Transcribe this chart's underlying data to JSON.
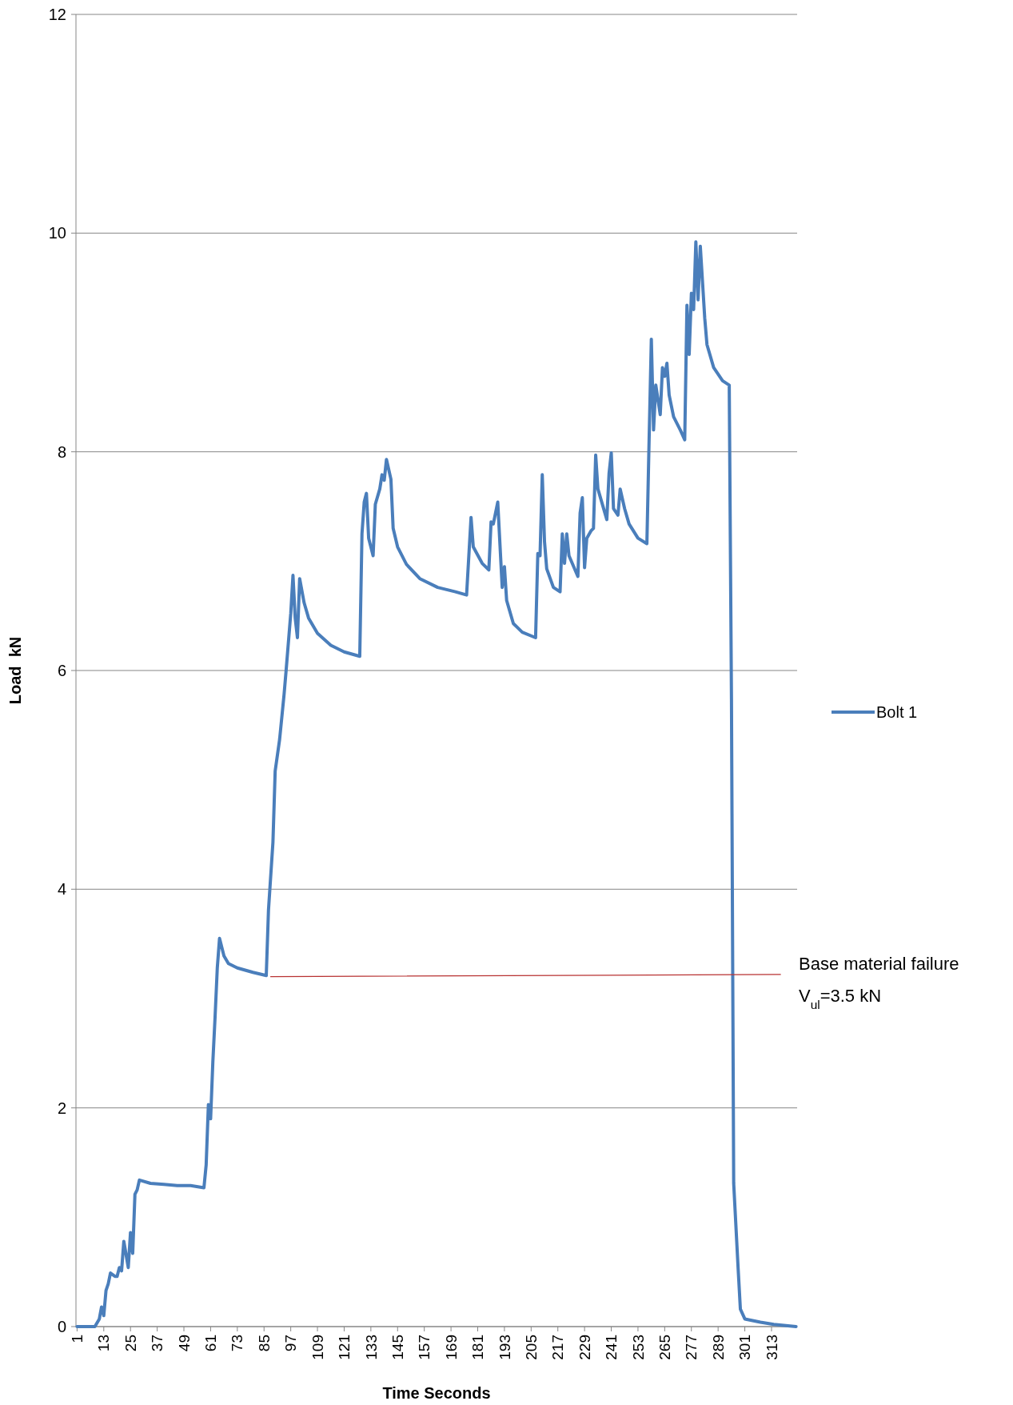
{
  "chart_data": {
    "type": "line",
    "xlabel": "Time Seconds",
    "ylabel": "Load  kN",
    "xlim": [
      0.5,
      324.5
    ],
    "ylim": [
      0,
      12
    ],
    "xticks": [
      1,
      13,
      25,
      37,
      49,
      61,
      73,
      85,
      97,
      109,
      121,
      133,
      145,
      157,
      169,
      181,
      193,
      205,
      217,
      229,
      241,
      253,
      265,
      277,
      289,
      301,
      313
    ],
    "yticks": [
      0,
      2,
      4,
      6,
      8,
      10,
      12
    ],
    "grid": "y",
    "legend": "right",
    "marker": "none",
    "line_style": "solid",
    "annotations": [
      "Base material failure",
      "V$_{ul}$=3.5 kN"
    ],
    "series": [
      {
        "name": "Bolt 1",
        "color": "#4a7ebb",
        "x": [
          1,
          9,
          11,
          12,
          13,
          14,
          15,
          16,
          18,
          19,
          20,
          21,
          22,
          24,
          25,
          26,
          27,
          28,
          29,
          34,
          40,
          46,
          52,
          58,
          59,
          60,
          61,
          62,
          63,
          64,
          65,
          67,
          69,
          73,
          80,
          86,
          87,
          89,
          90,
          92,
          94,
          95,
          97,
          98,
          99,
          100,
          101,
          103,
          105,
          109,
          115,
          121,
          128,
          129,
          130,
          131,
          132,
          134,
          135,
          137,
          138,
          139,
          140,
          142,
          143,
          145,
          149,
          155,
          163,
          171,
          176,
          178,
          179,
          183,
          186,
          187,
          188,
          190,
          192,
          193,
          194,
          197,
          201,
          207,
          208,
          209,
          210,
          211,
          212,
          215,
          218,
          219,
          220,
          221,
          222,
          226,
          227,
          228,
          229,
          230,
          232,
          233,
          234,
          235,
          239,
          240,
          241,
          242,
          244,
          245,
          247,
          249,
          253,
          257,
          258,
          259,
          260,
          261,
          263,
          264,
          265,
          266,
          267,
          269,
          272,
          274,
          275,
          276,
          277,
          278,
          279,
          280,
          281,
          283,
          284,
          287,
          291,
          294,
          295,
          296,
          298,
          299,
          301,
          308,
          314,
          324
        ],
        "values": [
          0,
          0,
          0.07,
          0.18,
          0.1,
          0.33,
          0.39,
          0.49,
          0.46,
          0.46,
          0.54,
          0.51,
          0.78,
          0.54,
          0.86,
          0.67,
          1.21,
          1.25,
          1.34,
          1.31,
          1.3,
          1.29,
          1.29,
          1.27,
          1.48,
          2.03,
          1.9,
          2.42,
          2.83,
          3.28,
          3.55,
          3.39,
          3.32,
          3.28,
          3.24,
          3.21,
          3.81,
          4.43,
          5.08,
          5.37,
          5.78,
          6.02,
          6.52,
          6.87,
          6.48,
          6.3,
          6.84,
          6.62,
          6.48,
          6.34,
          6.23,
          6.17,
          6.13,
          7.25,
          7.54,
          7.62,
          7.21,
          7.05,
          7.52,
          7.66,
          7.79,
          7.74,
          7.93,
          7.75,
          7.3,
          7.13,
          6.97,
          6.84,
          6.76,
          6.72,
          6.69,
          7.4,
          7.13,
          6.98,
          6.92,
          7.36,
          7.34,
          7.54,
          6.76,
          6.95,
          6.64,
          6.43,
          6.35,
          6.3,
          7.07,
          7.05,
          7.79,
          7.18,
          6.93,
          6.76,
          6.72,
          7.25,
          6.98,
          7.25,
          7.05,
          6.86,
          7.44,
          7.58,
          6.94,
          7.21,
          7.28,
          7.3,
          7.97,
          7.66,
          7.38,
          7.8,
          7.99,
          7.48,
          7.42,
          7.66,
          7.48,
          7.34,
          7.21,
          7.16,
          8.11,
          9.03,
          8.2,
          8.61,
          8.34,
          8.77,
          8.69,
          8.81,
          8.52,
          8.32,
          8.2,
          8.11,
          9.34,
          8.89,
          9.45,
          9.3,
          9.92,
          9.39,
          9.88,
          9.22,
          8.98,
          8.77,
          8.65,
          8.61,
          5.74,
          1.31,
          0.53,
          0.16,
          0.07,
          0.04,
          0.02,
          0
        ]
      },
      {
        "color": "#b83232",
        "x": [
          88,
          317
        ],
        "values": [
          3.2,
          3.22
        ]
      }
    ]
  }
}
